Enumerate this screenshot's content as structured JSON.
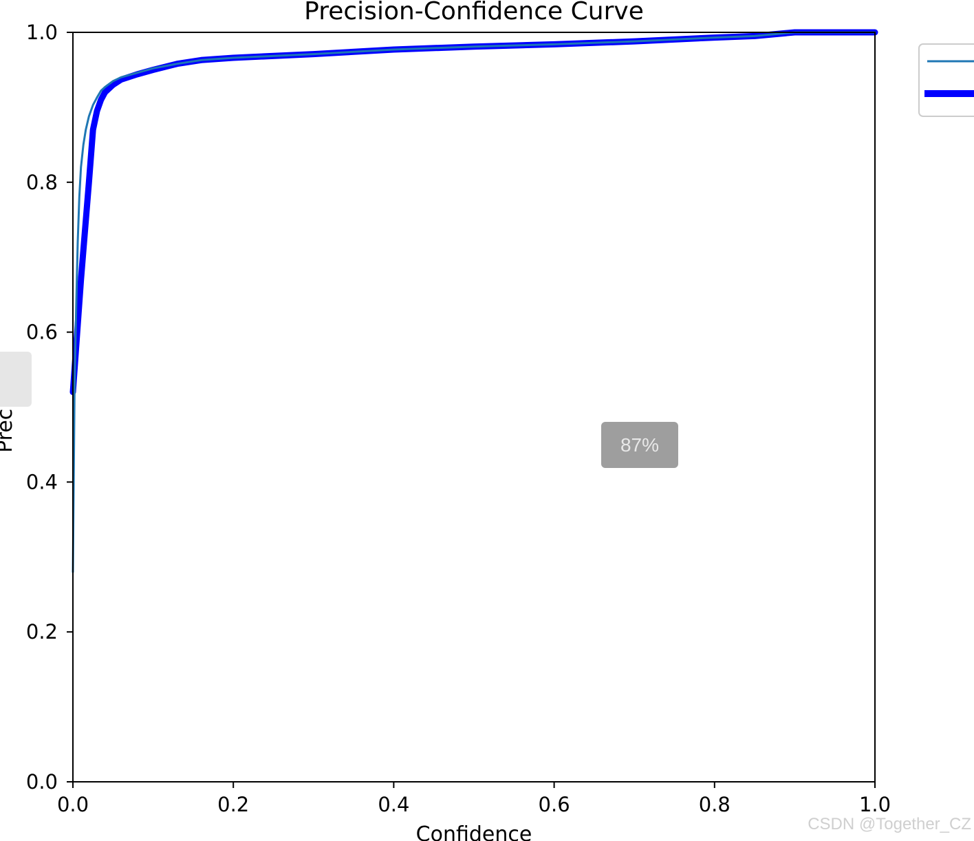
{
  "chart_data": {
    "type": "line",
    "title": "Precision-Confidence Curve",
    "xlabel": "Confidence",
    "ylabel": "Precision",
    "xlim": [
      0.0,
      1.0
    ],
    "ylim": [
      0.0,
      1.0
    ],
    "xticks": [
      "0.0",
      "0.2",
      "0.4",
      "0.6",
      "0.8",
      "1.0"
    ],
    "yticks": [
      "0.0",
      "0.2",
      "0.4",
      "0.6",
      "0.8",
      "1.0"
    ],
    "grid": false,
    "legend_position": "upper-right-outside",
    "series": [
      {
        "color": "#1f77b4",
        "thick": false,
        "x": [
          0.0,
          0.002,
          0.004,
          0.006,
          0.008,
          0.01,
          0.013,
          0.016,
          0.02,
          0.025,
          0.03,
          0.035,
          0.04,
          0.05,
          0.06,
          0.08,
          0.1,
          0.13,
          0.16,
          0.2,
          0.3,
          0.4,
          0.5,
          0.6,
          0.7,
          0.8,
          0.85,
          0.9,
          1.0
        ],
        "y": [
          0.28,
          0.52,
          0.63,
          0.72,
          0.78,
          0.82,
          0.85,
          0.87,
          0.888,
          0.903,
          0.913,
          0.922,
          0.927,
          0.935,
          0.94,
          0.946,
          0.952,
          0.958,
          0.963,
          0.966,
          0.971,
          0.977,
          0.981,
          0.984,
          0.988,
          0.993,
          0.995,
          1.0,
          1.0
        ]
      },
      {
        "color": "#0000ff",
        "thick": true,
        "x": [
          0.0,
          0.01,
          0.02,
          0.025,
          0.03,
          0.035,
          0.04,
          0.05,
          0.06,
          0.08,
          0.1,
          0.13,
          0.16,
          0.2,
          0.3,
          0.4,
          0.5,
          0.6,
          0.7,
          0.8,
          0.85,
          0.9,
          1.0
        ],
        "y": [
          0.52,
          0.67,
          0.8,
          0.87,
          0.895,
          0.91,
          0.92,
          0.93,
          0.937,
          0.944,
          0.95,
          0.958,
          0.963,
          0.966,
          0.971,
          0.977,
          0.981,
          0.984,
          0.988,
          0.993,
          0.995,
          1.0,
          1.0
        ]
      }
    ]
  },
  "overlays": {
    "zoom_badge": "87%",
    "watermark": "CSDN @Together_CZ"
  }
}
